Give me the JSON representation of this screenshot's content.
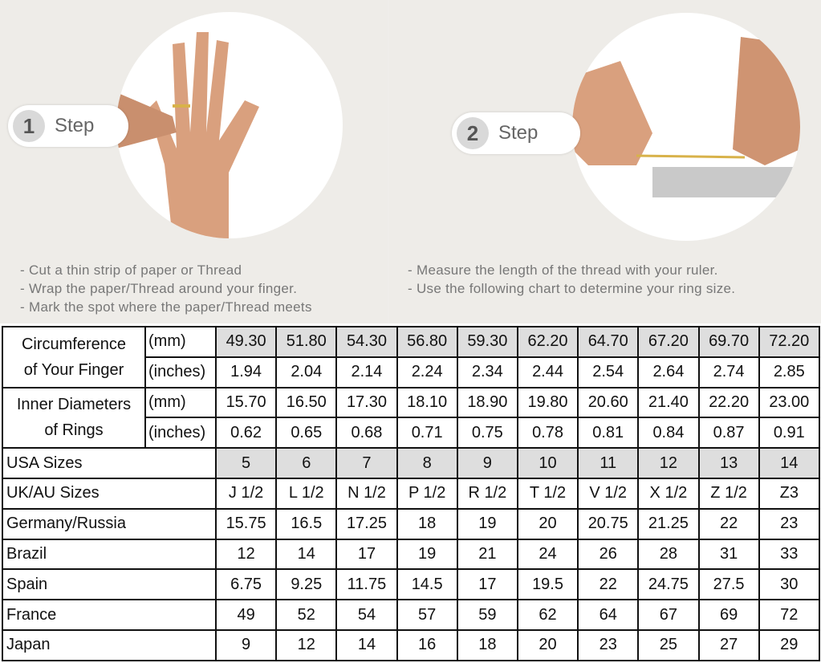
{
  "steps": [
    {
      "number": "1",
      "label": "Step",
      "instructions": [
        "-  Cut a thin strip of paper or Thread",
        "-  Wrap the paper/Thread around your finger.",
        "-  Mark the spot where the paper/Thread meets"
      ]
    },
    {
      "number": "2",
      "label": "Step",
      "instructions": [
        "-  Measure the length of the thread with your ruler.",
        "-  Use the following chart to determine your ring size."
      ]
    }
  ],
  "table": {
    "circumference": {
      "label": [
        "Circumference",
        "of Your Finger"
      ],
      "mm_unit": "(mm)",
      "in_unit": "(inches)",
      "mm": [
        "49.30",
        "51.80",
        "54.30",
        "56.80",
        "59.30",
        "62.20",
        "64.70",
        "67.20",
        "69.70",
        "72.20"
      ],
      "inches": [
        "1.94",
        "2.04",
        "2.14",
        "2.24",
        "2.34",
        "2.44",
        "2.54",
        "2.64",
        "2.74",
        "2.85"
      ]
    },
    "diameter": {
      "label": [
        "Inner Diameters",
        "of Rings"
      ],
      "mm_unit": "(mm)",
      "in_unit": "(inches)",
      "mm": [
        "15.70",
        "16.50",
        "17.30",
        "18.10",
        "18.90",
        "19.80",
        "20.60",
        "21.40",
        "22.20",
        "23.00"
      ],
      "inches": [
        "0.62",
        "0.65",
        "0.68",
        "0.71",
        "0.75",
        "0.78",
        "0.81",
        "0.84",
        "0.87",
        "0.91"
      ]
    },
    "rows": [
      {
        "label": "USA Sizes",
        "values": [
          "5",
          "6",
          "7",
          "8",
          "9",
          "10",
          "11",
          "12",
          "13",
          "14"
        ]
      },
      {
        "label": "UK/AU Sizes",
        "values": [
          "J 1/2",
          "L 1/2",
          "N 1/2",
          "P 1/2",
          "R 1/2",
          "T 1/2",
          "V 1/2",
          "X 1/2",
          "Z 1/2",
          "Z3"
        ]
      },
      {
        "label": "Germany/Russia",
        "values": [
          "15.75",
          "16.5",
          "17.25",
          "18",
          "19",
          "20",
          "20.75",
          "21.25",
          "22",
          "23"
        ]
      },
      {
        "label": "Brazil",
        "values": [
          "12",
          "14",
          "17",
          "19",
          "21",
          "24",
          "26",
          "28",
          "31",
          "33"
        ]
      },
      {
        "label": "Spain",
        "values": [
          "6.75",
          "9.25",
          "11.75",
          "14.5",
          "17",
          "19.5",
          "22",
          "24.75",
          "27.5",
          "30"
        ]
      },
      {
        "label": "France",
        "values": [
          "49",
          "52",
          "54",
          "57",
          "59",
          "62",
          "64",
          "67",
          "69",
          "72"
        ]
      },
      {
        "label": "Japan",
        "values": [
          "9",
          "12",
          "14",
          "16",
          "18",
          "20",
          "23",
          "25",
          "27",
          "29"
        ]
      }
    ]
  },
  "colors": {
    "highlight_row": "#dedede",
    "background": "#eeece8"
  }
}
